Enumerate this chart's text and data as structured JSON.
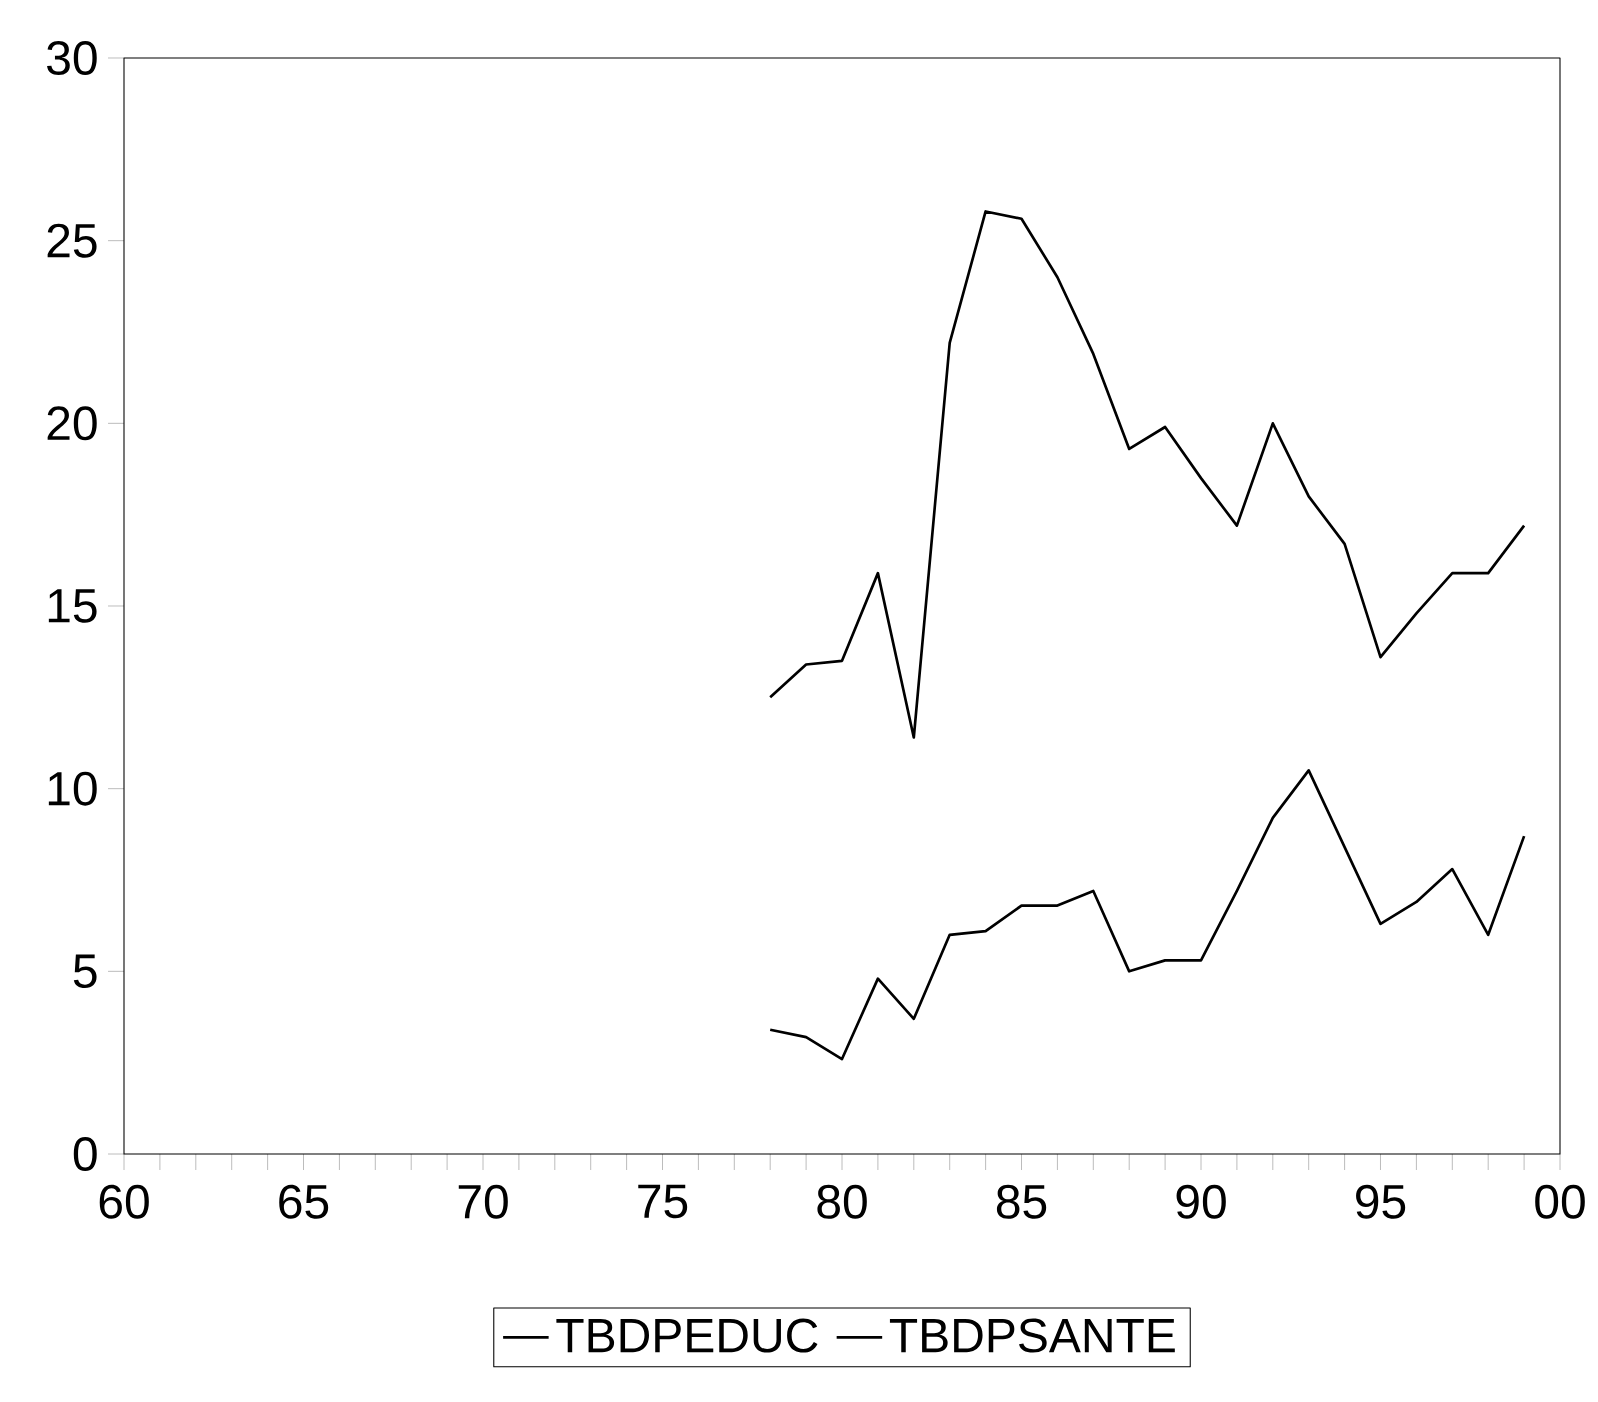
{
  "chart_data": {
    "type": "line",
    "x": [
      "1978",
      "1979",
      "1980",
      "1981",
      "1982",
      "1983",
      "1984",
      "1985",
      "1986",
      "1987",
      "1988",
      "1989",
      "1990",
      "1991",
      "1992",
      "1993",
      "1994",
      "1995",
      "1996",
      "1997",
      "1998",
      "1999"
    ],
    "series": [
      {
        "name": "TBDPEDUC",
        "color": "#000000",
        "values": [
          12.5,
          13.4,
          13.5,
          15.9,
          11.4,
          22.2,
          25.8,
          25.6,
          24.0,
          21.9,
          19.3,
          19.9,
          18.5,
          17.2,
          20.0,
          18.0,
          16.7,
          13.6,
          14.8,
          15.9,
          15.9,
          17.2
        ]
      },
      {
        "name": "TBDPSANTE",
        "color": "#000000",
        "values": [
          3.4,
          3.2,
          2.6,
          4.8,
          3.7,
          6.0,
          6.1,
          6.8,
          6.8,
          7.2,
          5.0,
          5.3,
          5.3,
          7.2,
          9.2,
          10.5,
          8.4,
          6.3,
          6.9,
          7.8,
          6.0,
          8.7
        ]
      }
    ],
    "xlim": [
      "1960",
      "2000"
    ],
    "ylim": [
      0,
      30
    ],
    "xticks": [
      {
        "value": "1960",
        "label": "60"
      },
      {
        "value": "1961",
        "label": null
      },
      {
        "value": "1962",
        "label": null
      },
      {
        "value": "1963",
        "label": null
      },
      {
        "value": "1964",
        "label": null
      },
      {
        "value": "1965",
        "label": "65"
      },
      {
        "value": "1966",
        "label": null
      },
      {
        "value": "1967",
        "label": null
      },
      {
        "value": "1968",
        "label": null
      },
      {
        "value": "1969",
        "label": null
      },
      {
        "value": "1970",
        "label": "70"
      },
      {
        "value": "1971",
        "label": null
      },
      {
        "value": "1972",
        "label": null
      },
      {
        "value": "1973",
        "label": null
      },
      {
        "value": "1974",
        "label": null
      },
      {
        "value": "1975",
        "label": "75"
      },
      {
        "value": "1976",
        "label": null
      },
      {
        "value": "1977",
        "label": null
      },
      {
        "value": "1978",
        "label": null
      },
      {
        "value": "1979",
        "label": null
      },
      {
        "value": "1980",
        "label": "80"
      },
      {
        "value": "1981",
        "label": null
      },
      {
        "value": "1982",
        "label": null
      },
      {
        "value": "1983",
        "label": null
      },
      {
        "value": "1984",
        "label": null
      },
      {
        "value": "1985",
        "label": "85"
      },
      {
        "value": "1986",
        "label": null
      },
      {
        "value": "1987",
        "label": null
      },
      {
        "value": "1988",
        "label": null
      },
      {
        "value": "1989",
        "label": null
      },
      {
        "value": "1990",
        "label": "90"
      },
      {
        "value": "1991",
        "label": null
      },
      {
        "value": "1992",
        "label": null
      },
      {
        "value": "1993",
        "label": null
      },
      {
        "value": "1994",
        "label": null
      },
      {
        "value": "1995",
        "label": "95"
      },
      {
        "value": "1996",
        "label": null
      },
      {
        "value": "1997",
        "label": null
      },
      {
        "value": "1998",
        "label": null
      },
      {
        "value": "1999",
        "label": null
      },
      {
        "value": "2000",
        "label": "00"
      }
    ],
    "yticks": [
      0,
      5,
      10,
      15,
      20,
      25,
      30
    ],
    "legend": "bottom",
    "grid": false,
    "marker": "none",
    "line_style": "solid"
  }
}
